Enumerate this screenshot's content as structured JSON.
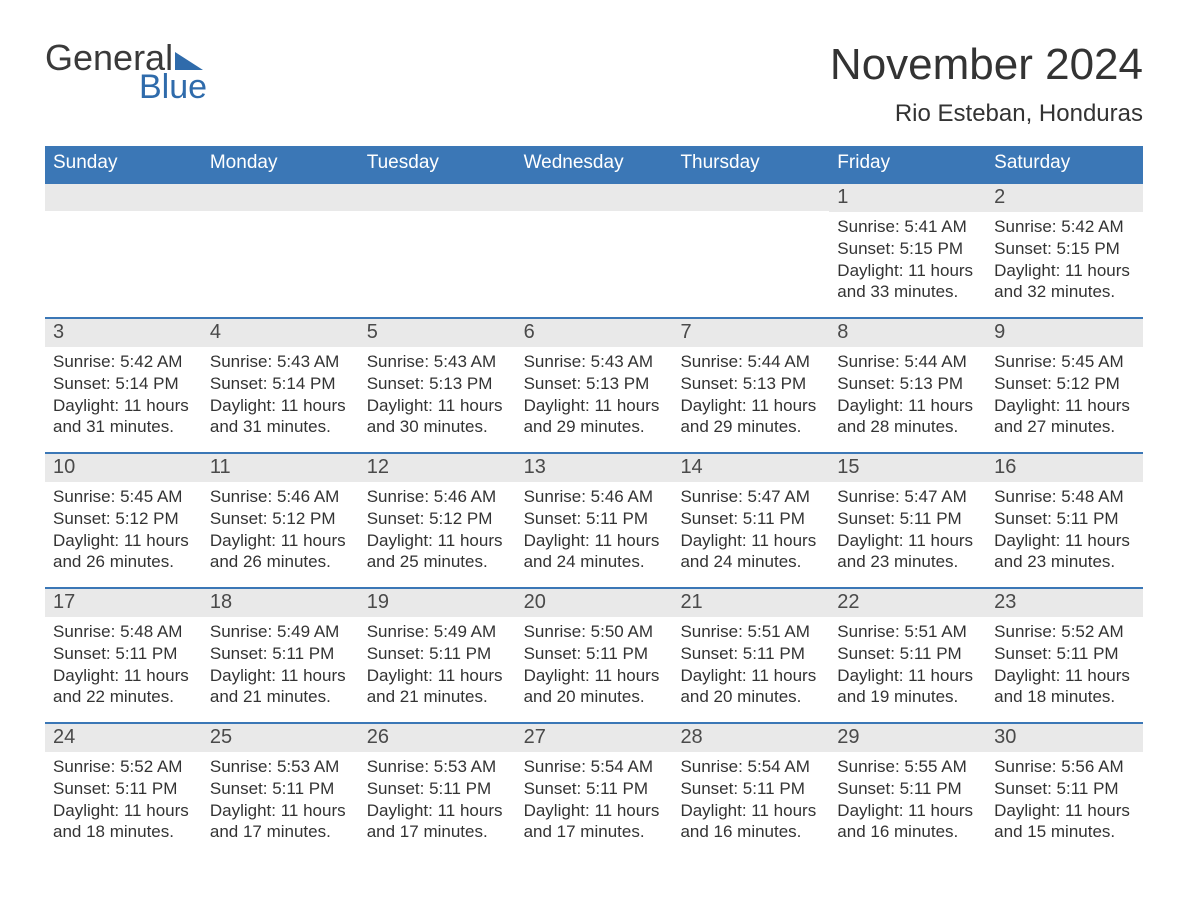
{
  "logo": {
    "top": "General",
    "bottom": "Blue"
  },
  "title": "November 2024",
  "location": "Rio Esteban, Honduras",
  "colors": {
    "header_bg": "#3b77b6",
    "header_text": "#ffffff",
    "daynum_bg": "#e9e9e9",
    "body_text": "#333333",
    "logo_accent": "#2f6bab",
    "row_border": "#3b77b6"
  },
  "weekdays": [
    "Sunday",
    "Monday",
    "Tuesday",
    "Wednesday",
    "Thursday",
    "Friday",
    "Saturday"
  ],
  "layout": {
    "columns": 7,
    "rows": 5,
    "first_weekday_index": 5
  },
  "fonts": {
    "title_size": 44,
    "location_size": 24,
    "weekday_size": 19,
    "daynum_size": 20,
    "body_size": 17
  },
  "days": [
    {
      "n": 1,
      "sunrise": "5:41 AM",
      "sunset": "5:15 PM",
      "daylight": "11 hours and 33 minutes."
    },
    {
      "n": 2,
      "sunrise": "5:42 AM",
      "sunset": "5:15 PM",
      "daylight": "11 hours and 32 minutes."
    },
    {
      "n": 3,
      "sunrise": "5:42 AM",
      "sunset": "5:14 PM",
      "daylight": "11 hours and 31 minutes."
    },
    {
      "n": 4,
      "sunrise": "5:43 AM",
      "sunset": "5:14 PM",
      "daylight": "11 hours and 31 minutes."
    },
    {
      "n": 5,
      "sunrise": "5:43 AM",
      "sunset": "5:13 PM",
      "daylight": "11 hours and 30 minutes."
    },
    {
      "n": 6,
      "sunrise": "5:43 AM",
      "sunset": "5:13 PM",
      "daylight": "11 hours and 29 minutes."
    },
    {
      "n": 7,
      "sunrise": "5:44 AM",
      "sunset": "5:13 PM",
      "daylight": "11 hours and 29 minutes."
    },
    {
      "n": 8,
      "sunrise": "5:44 AM",
      "sunset": "5:13 PM",
      "daylight": "11 hours and 28 minutes."
    },
    {
      "n": 9,
      "sunrise": "5:45 AM",
      "sunset": "5:12 PM",
      "daylight": "11 hours and 27 minutes."
    },
    {
      "n": 10,
      "sunrise": "5:45 AM",
      "sunset": "5:12 PM",
      "daylight": "11 hours and 26 minutes."
    },
    {
      "n": 11,
      "sunrise": "5:46 AM",
      "sunset": "5:12 PM",
      "daylight": "11 hours and 26 minutes."
    },
    {
      "n": 12,
      "sunrise": "5:46 AM",
      "sunset": "5:12 PM",
      "daylight": "11 hours and 25 minutes."
    },
    {
      "n": 13,
      "sunrise": "5:46 AM",
      "sunset": "5:11 PM",
      "daylight": "11 hours and 24 minutes."
    },
    {
      "n": 14,
      "sunrise": "5:47 AM",
      "sunset": "5:11 PM",
      "daylight": "11 hours and 24 minutes."
    },
    {
      "n": 15,
      "sunrise": "5:47 AM",
      "sunset": "5:11 PM",
      "daylight": "11 hours and 23 minutes."
    },
    {
      "n": 16,
      "sunrise": "5:48 AM",
      "sunset": "5:11 PM",
      "daylight": "11 hours and 23 minutes."
    },
    {
      "n": 17,
      "sunrise": "5:48 AM",
      "sunset": "5:11 PM",
      "daylight": "11 hours and 22 minutes."
    },
    {
      "n": 18,
      "sunrise": "5:49 AM",
      "sunset": "5:11 PM",
      "daylight": "11 hours and 21 minutes."
    },
    {
      "n": 19,
      "sunrise": "5:49 AM",
      "sunset": "5:11 PM",
      "daylight": "11 hours and 21 minutes."
    },
    {
      "n": 20,
      "sunrise": "5:50 AM",
      "sunset": "5:11 PM",
      "daylight": "11 hours and 20 minutes."
    },
    {
      "n": 21,
      "sunrise": "5:51 AM",
      "sunset": "5:11 PM",
      "daylight": "11 hours and 20 minutes."
    },
    {
      "n": 22,
      "sunrise": "5:51 AM",
      "sunset": "5:11 PM",
      "daylight": "11 hours and 19 minutes."
    },
    {
      "n": 23,
      "sunrise": "5:52 AM",
      "sunset": "5:11 PM",
      "daylight": "11 hours and 18 minutes."
    },
    {
      "n": 24,
      "sunrise": "5:52 AM",
      "sunset": "5:11 PM",
      "daylight": "11 hours and 18 minutes."
    },
    {
      "n": 25,
      "sunrise": "5:53 AM",
      "sunset": "5:11 PM",
      "daylight": "11 hours and 17 minutes."
    },
    {
      "n": 26,
      "sunrise": "5:53 AM",
      "sunset": "5:11 PM",
      "daylight": "11 hours and 17 minutes."
    },
    {
      "n": 27,
      "sunrise": "5:54 AM",
      "sunset": "5:11 PM",
      "daylight": "11 hours and 17 minutes."
    },
    {
      "n": 28,
      "sunrise": "5:54 AM",
      "sunset": "5:11 PM",
      "daylight": "11 hours and 16 minutes."
    },
    {
      "n": 29,
      "sunrise": "5:55 AM",
      "sunset": "5:11 PM",
      "daylight": "11 hours and 16 minutes."
    },
    {
      "n": 30,
      "sunrise": "5:56 AM",
      "sunset": "5:11 PM",
      "daylight": "11 hours and 15 minutes."
    }
  ],
  "labels": {
    "sunrise": "Sunrise: ",
    "sunset": "Sunset: ",
    "daylight": "Daylight: "
  }
}
